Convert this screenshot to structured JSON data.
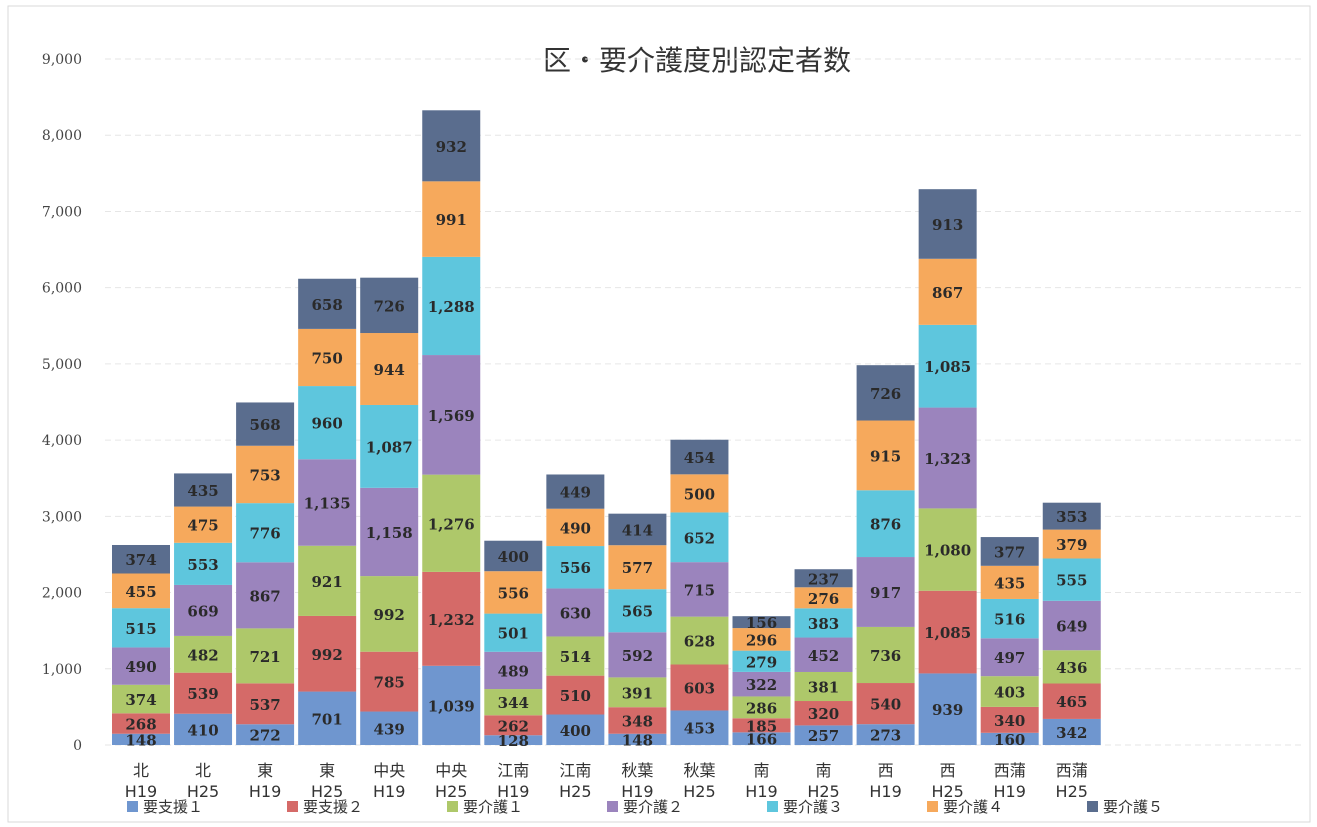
{
  "chart_data": {
    "type": "bar",
    "stacked": true,
    "title": "区・要介護度別認定者数",
    "xlabel": "",
    "ylabel": "",
    "ylim": [
      0,
      9000
    ],
    "yticks": [
      0,
      1000,
      2000,
      3000,
      4000,
      5000,
      6000,
      7000,
      8000,
      9000
    ],
    "ytick_labels": [
      "0",
      "1,000",
      "2,000",
      "3,000",
      "4,000",
      "5,000",
      "6,000",
      "7,000",
      "8,000",
      "9,000"
    ],
    "grid": true,
    "legend_position": "bottom",
    "categories": [
      [
        "北",
        "H19"
      ],
      [
        "北",
        "H25"
      ],
      [
        "東",
        "H19"
      ],
      [
        "東",
        "H25"
      ],
      [
        "中央",
        "H19"
      ],
      [
        "中央",
        "H25"
      ],
      [
        "江南",
        "H19"
      ],
      [
        "江南",
        "H25"
      ],
      [
        "秋葉",
        "H19"
      ],
      [
        "秋葉",
        "H25"
      ],
      [
        "南",
        "H19"
      ],
      [
        "南",
        "H25"
      ],
      [
        "西",
        "H19"
      ],
      [
        "西",
        "H25"
      ],
      [
        "西蒲",
        "H19"
      ],
      [
        "西蒲",
        "H25"
      ]
    ],
    "series": [
      {
        "name": "要支援１",
        "color": "#6f96cf",
        "values": [
          148,
          410,
          272,
          701,
          439,
          1039,
          128,
          400,
          148,
          453,
          166,
          257,
          273,
          939,
          160,
          342
        ]
      },
      {
        "name": "要支援２",
        "color": "#d56a68",
        "values": [
          268,
          539,
          537,
          992,
          785,
          1232,
          262,
          510,
          348,
          603,
          185,
          320,
          540,
          1085,
          340,
          465
        ]
      },
      {
        "name": "要介護１",
        "color": "#aec86a",
        "values": [
          374,
          482,
          721,
          921,
          992,
          1276,
          344,
          514,
          391,
          628,
          286,
          381,
          736,
          1080,
          403,
          436
        ]
      },
      {
        "name": "要介護２",
        "color": "#9b84bd",
        "values": [
          490,
          669,
          867,
          1135,
          1158,
          1569,
          489,
          630,
          592,
          715,
          322,
          452,
          917,
          1323,
          497,
          649
        ]
      },
      {
        "name": "要介護３",
        "color": "#5ec6dd",
        "values": [
          515,
          553,
          776,
          960,
          1087,
          1288,
          501,
          556,
          565,
          652,
          279,
          383,
          876,
          1085,
          516,
          555
        ]
      },
      {
        "name": "要介護４",
        "color": "#f6a95c",
        "values": [
          455,
          475,
          753,
          750,
          944,
          991,
          556,
          490,
          577,
          500,
          296,
          276,
          915,
          867,
          435,
          379
        ]
      },
      {
        "name": "要介護５",
        "color": "#5a6d8e",
        "values": [
          374,
          435,
          568,
          658,
          726,
          932,
          400,
          449,
          414,
          454,
          156,
          237,
          726,
          913,
          377,
          353
        ]
      }
    ]
  }
}
